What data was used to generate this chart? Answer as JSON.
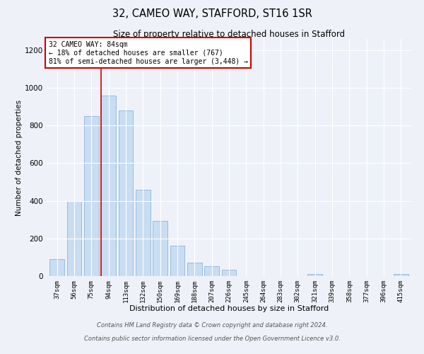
{
  "title": "32, CAMEO WAY, STAFFORD, ST16 1SR",
  "subtitle": "Size of property relative to detached houses in Stafford",
  "xlabel": "Distribution of detached houses by size in Stafford",
  "ylabel": "Number of detached properties",
  "footnote1": "Contains HM Land Registry data © Crown copyright and database right 2024.",
  "footnote2": "Contains public sector information licensed under the Open Government Licence v3.0.",
  "bar_labels": [
    "37sqm",
    "56sqm",
    "75sqm",
    "94sqm",
    "113sqm",
    "132sqm",
    "150sqm",
    "169sqm",
    "188sqm",
    "207sqm",
    "226sqm",
    "245sqm",
    "264sqm",
    "283sqm",
    "302sqm",
    "321sqm",
    "339sqm",
    "358sqm",
    "377sqm",
    "396sqm",
    "415sqm"
  ],
  "bar_values": [
    90,
    400,
    850,
    960,
    880,
    460,
    295,
    160,
    70,
    52,
    35,
    0,
    0,
    0,
    0,
    10,
    0,
    0,
    0,
    0,
    10
  ],
  "bar_color": "#c9ddf2",
  "bar_edgecolor": "#8ab4d8",
  "property_line_x": 2.575,
  "property_line_label": "32 CAMEO WAY: 84sqm",
  "annotation_line1": "← 18% of detached houses are smaller (767)",
  "annotation_line2": "81% of semi-detached houses are larger (3,448) →",
  "annotation_box_color": "#ffffff",
  "annotation_box_edgecolor": "#cc0000",
  "property_line_color": "#cc0000",
  "ylim": [
    0,
    1260
  ],
  "yticks": [
    0,
    200,
    400,
    600,
    800,
    1000,
    1200
  ],
  "bg_color": "#eef2f8",
  "plot_bg_color": "#eef2f8"
}
